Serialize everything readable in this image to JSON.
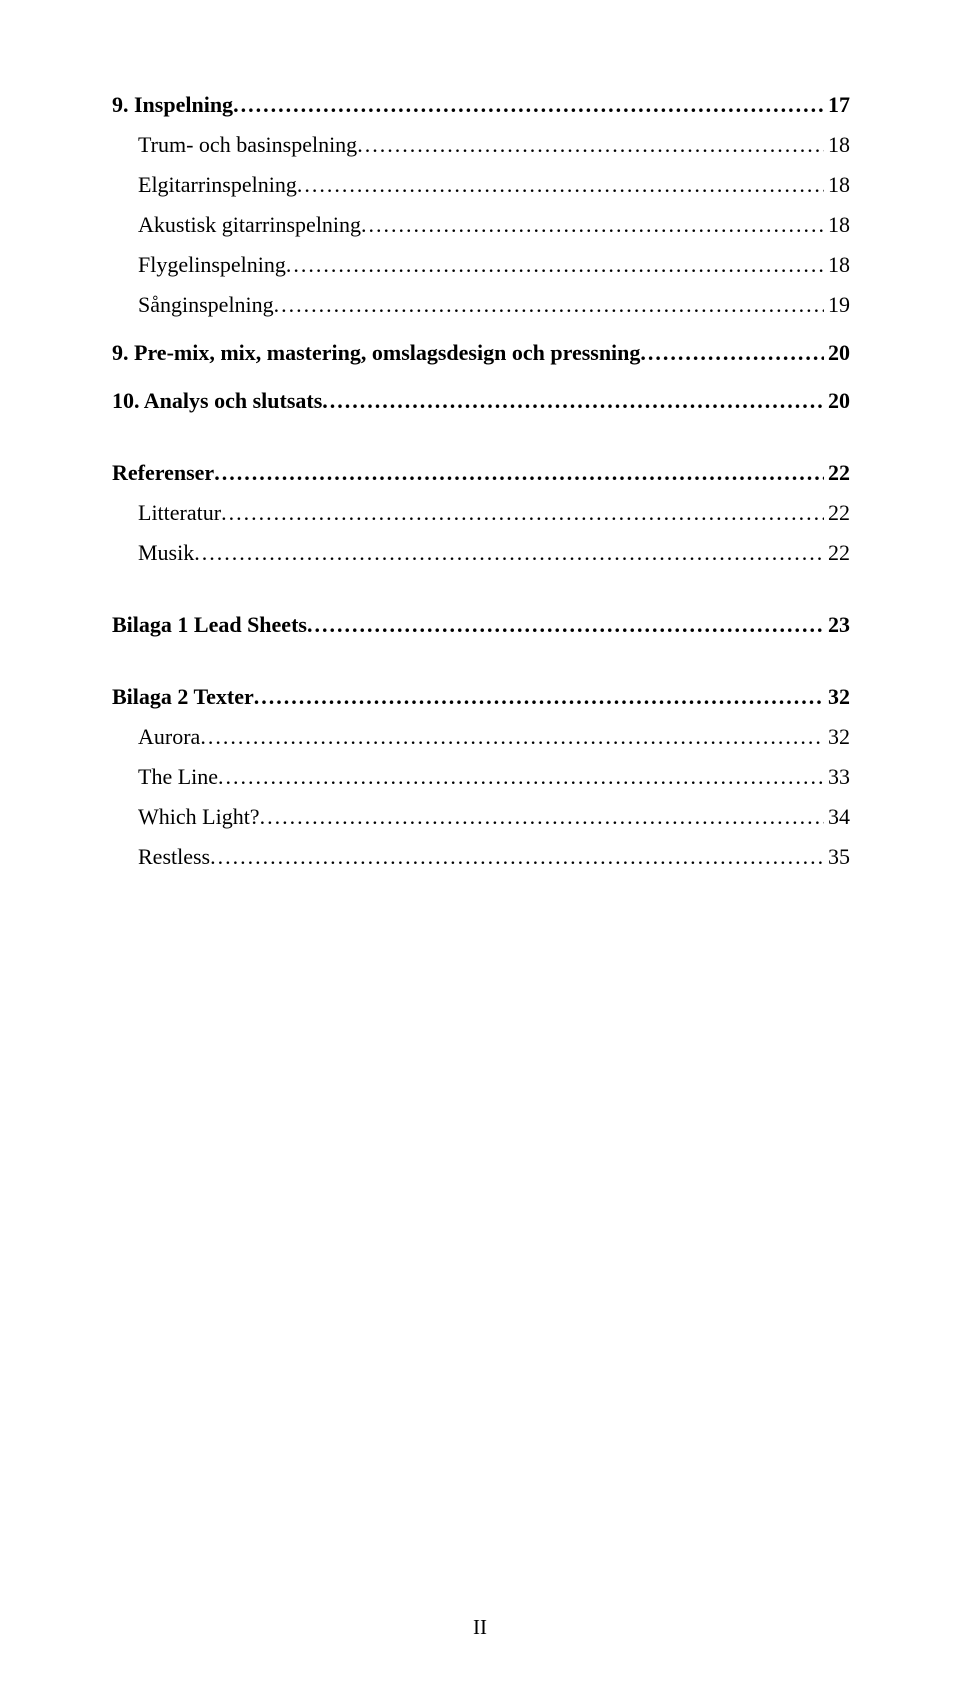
{
  "toc": [
    {
      "label": "9. Inspelning",
      "page": "17",
      "level": 0,
      "gap": false
    },
    {
      "label": "Trum- och basinspelning",
      "page": "18",
      "level": 1,
      "gap": false
    },
    {
      "label": "Elgitarrinspelning",
      "page": "18",
      "level": 1,
      "gap": false
    },
    {
      "label": "Akustisk gitarrinspelning",
      "page": "18",
      "level": 1,
      "gap": false
    },
    {
      "label": "Flygelinspelning",
      "page": "18",
      "level": 1,
      "gap": false
    },
    {
      "label": "Sånginspelning",
      "page": "19",
      "level": 1,
      "gap": false
    },
    {
      "label": "9. Pre-mix, mix, mastering, omslagsdesign och pressning",
      "page": "20",
      "level": 0,
      "gap": false
    },
    {
      "label": "10. Analys och slutsats",
      "page": "20",
      "level": 0,
      "gap": false
    },
    {
      "label": "Referenser",
      "page": "22",
      "level": 0,
      "gap": true
    },
    {
      "label": "Litteratur",
      "page": "22",
      "level": 1,
      "gap": false
    },
    {
      "label": "Musik",
      "page": "22",
      "level": 1,
      "gap": false
    },
    {
      "label": "Bilaga 1 Lead Sheets",
      "page": "23",
      "level": 0,
      "gap": true
    },
    {
      "label": "Bilaga 2 Texter",
      "page": "32",
      "level": 0,
      "gap": true
    },
    {
      "label": "Aurora",
      "page": "32",
      "level": 1,
      "gap": false
    },
    {
      "label": "The Line",
      "page": "33",
      "level": 1,
      "gap": false
    },
    {
      "label": "Which Light?",
      "page": "34",
      "level": 1,
      "gap": false
    },
    {
      "label": "Restless",
      "page": "35",
      "level": 1,
      "gap": false
    }
  ],
  "footer": {
    "page_number": "II"
  },
  "colors": {
    "text": "#000000",
    "background": "#ffffff"
  }
}
